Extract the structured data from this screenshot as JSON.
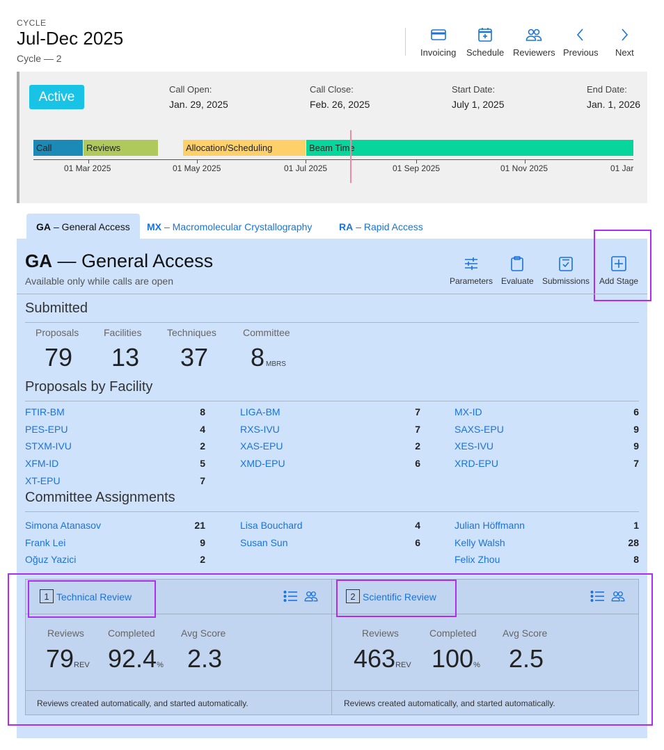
{
  "header": {
    "label": "CYCLE",
    "title": "Jul-Dec 2025",
    "subtitle": "Cycle — 2",
    "buttons": {
      "invoicing": "Invoicing",
      "schedule": "Schedule",
      "reviewers": "Reviewers",
      "previous": "Previous",
      "next": "Next"
    }
  },
  "status": {
    "badge": "Active",
    "call_open_label": "Call Open:",
    "call_open": "Jan. 29, 2025",
    "call_close_label": "Call Close:",
    "call_close": "Feb. 26, 2025",
    "start_label": "Start Date:",
    "start": "July 1, 2025",
    "end_label": "End Date:",
    "end": "Jan. 1, 2026"
  },
  "timeline": {
    "phases": [
      "Call",
      "Reviews",
      "Allocation/Scheduling",
      "Beam Time"
    ],
    "ticks": [
      "01 Mar 2025",
      "01 May 2025",
      "01 Jul 2025",
      "01 Sep 2025",
      "01 Nov 2025",
      "01 Jar"
    ],
    "colors": {
      "call": "#1b8ab7",
      "reviews": "#b0c95d",
      "allocation": "#fdd06a",
      "beam": "#06d69b"
    }
  },
  "tabs": [
    {
      "code": "GA",
      "name": "– General Access"
    },
    {
      "code": "MX",
      "name": "– Macromolecular Crystallography"
    },
    {
      "code": "RA",
      "name": "– Rapid Access"
    }
  ],
  "panel": {
    "title_code": "GA",
    "title_rest": "— General Access",
    "subtitle": "Available only while calls are open",
    "buttons": {
      "parameters": "Parameters",
      "evaluate": "Evaluate",
      "submissions": "Submissions",
      "add_stage": "Add Stage"
    },
    "submitted_heading": "Submitted",
    "stats": [
      {
        "label": "Proposals",
        "value": "79",
        "unit": ""
      },
      {
        "label": "Facilities",
        "value": "13",
        "unit": ""
      },
      {
        "label": "Techniques",
        "value": "37",
        "unit": ""
      },
      {
        "label": "Committee",
        "value": "8",
        "unit": "MBRS"
      }
    ],
    "facility_heading": "Proposals by Facility",
    "facilities": [
      [
        "FTIR-BM",
        "8"
      ],
      [
        "LIGA-BM",
        "7"
      ],
      [
        "MX-ID",
        "6"
      ],
      [
        "PES-EPU",
        "4"
      ],
      [
        "RXS-IVU",
        "7"
      ],
      [
        "SAXS-EPU",
        "9"
      ],
      [
        "STXM-IVU",
        "2"
      ],
      [
        "XAS-EPU",
        "2"
      ],
      [
        "XES-IVU",
        "9"
      ],
      [
        "XFM-ID",
        "5"
      ],
      [
        "XMD-EPU",
        "6"
      ],
      [
        "XRD-EPU",
        "7"
      ],
      [
        "XT-EPU",
        "7"
      ]
    ],
    "committee_heading": "Committee Assignments",
    "committee": [
      [
        "Simona Atanasov",
        "21",
        0
      ],
      [
        "Lisa Bouchard",
        "4",
        1
      ],
      [
        "Julian Höffmann",
        "1",
        2
      ],
      [
        "Frank Lei",
        "9",
        0
      ],
      [
        "Susan Sun",
        "6",
        1
      ],
      [
        "Kelly Walsh",
        "28",
        2
      ],
      [
        "Oğuz Yazici",
        "2",
        0
      ],
      [
        "Felix Zhou",
        "8",
        2
      ]
    ]
  },
  "stages": [
    {
      "num": "1",
      "title": "Technical Review",
      "reviews_label": "Reviews",
      "reviews": "79",
      "reviews_unit": "REV",
      "completed_label": "Completed",
      "completed": "92.4",
      "completed_unit": "%",
      "avg_label": "Avg Score",
      "avg": "2.3",
      "footer": "Reviews created automatically, and started automatically."
    },
    {
      "num": "2",
      "title": "Scientific Review",
      "reviews_label": "Reviews",
      "reviews": "463",
      "reviews_unit": "REV",
      "completed_label": "Completed",
      "completed": "100",
      "completed_unit": "%",
      "avg_label": "Avg Score",
      "avg": "2.5",
      "footer": "Reviews created automatically, and started automatically."
    }
  ]
}
